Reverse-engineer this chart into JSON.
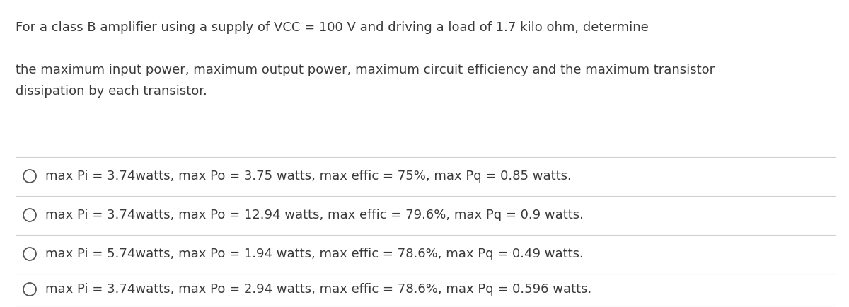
{
  "background_color": "#ffffff",
  "text_color": "#3a3a3a",
  "question_line1": "For a class B amplifier using a supply of VCC = 100 V and driving a load of 1.7 kilo ohm, determine",
  "question_line2": "the maximum input power, maximum output power, maximum circuit efficiency and the maximum transistor",
  "question_line3": "dissipation by each transistor.",
  "options": [
    "max Pi = 3.74watts, max Po = 3.75 watts, max effic = 75%, max Pq = 0.85 watts.",
    "max Pi = 3.74watts, max Po = 12.94 watts, max effic = 79.6%, max Pq = 0.9 watts.",
    "max Pi = 5.74watts, max Po = 1.94 watts, max effic = 78.6%, max Pq = 0.49 watts.",
    "max Pi = 3.74watts, max Po = 2.94 watts, max effic = 78.6%, max Pq = 0.596 watts."
  ],
  "divider_color": "#d0d0d0",
  "font_size_question": 13.0,
  "font_size_options": 13.0,
  "circle_color": "#555555",
  "fig_width": 12.0,
  "fig_height": 4.34,
  "dpi": 100
}
